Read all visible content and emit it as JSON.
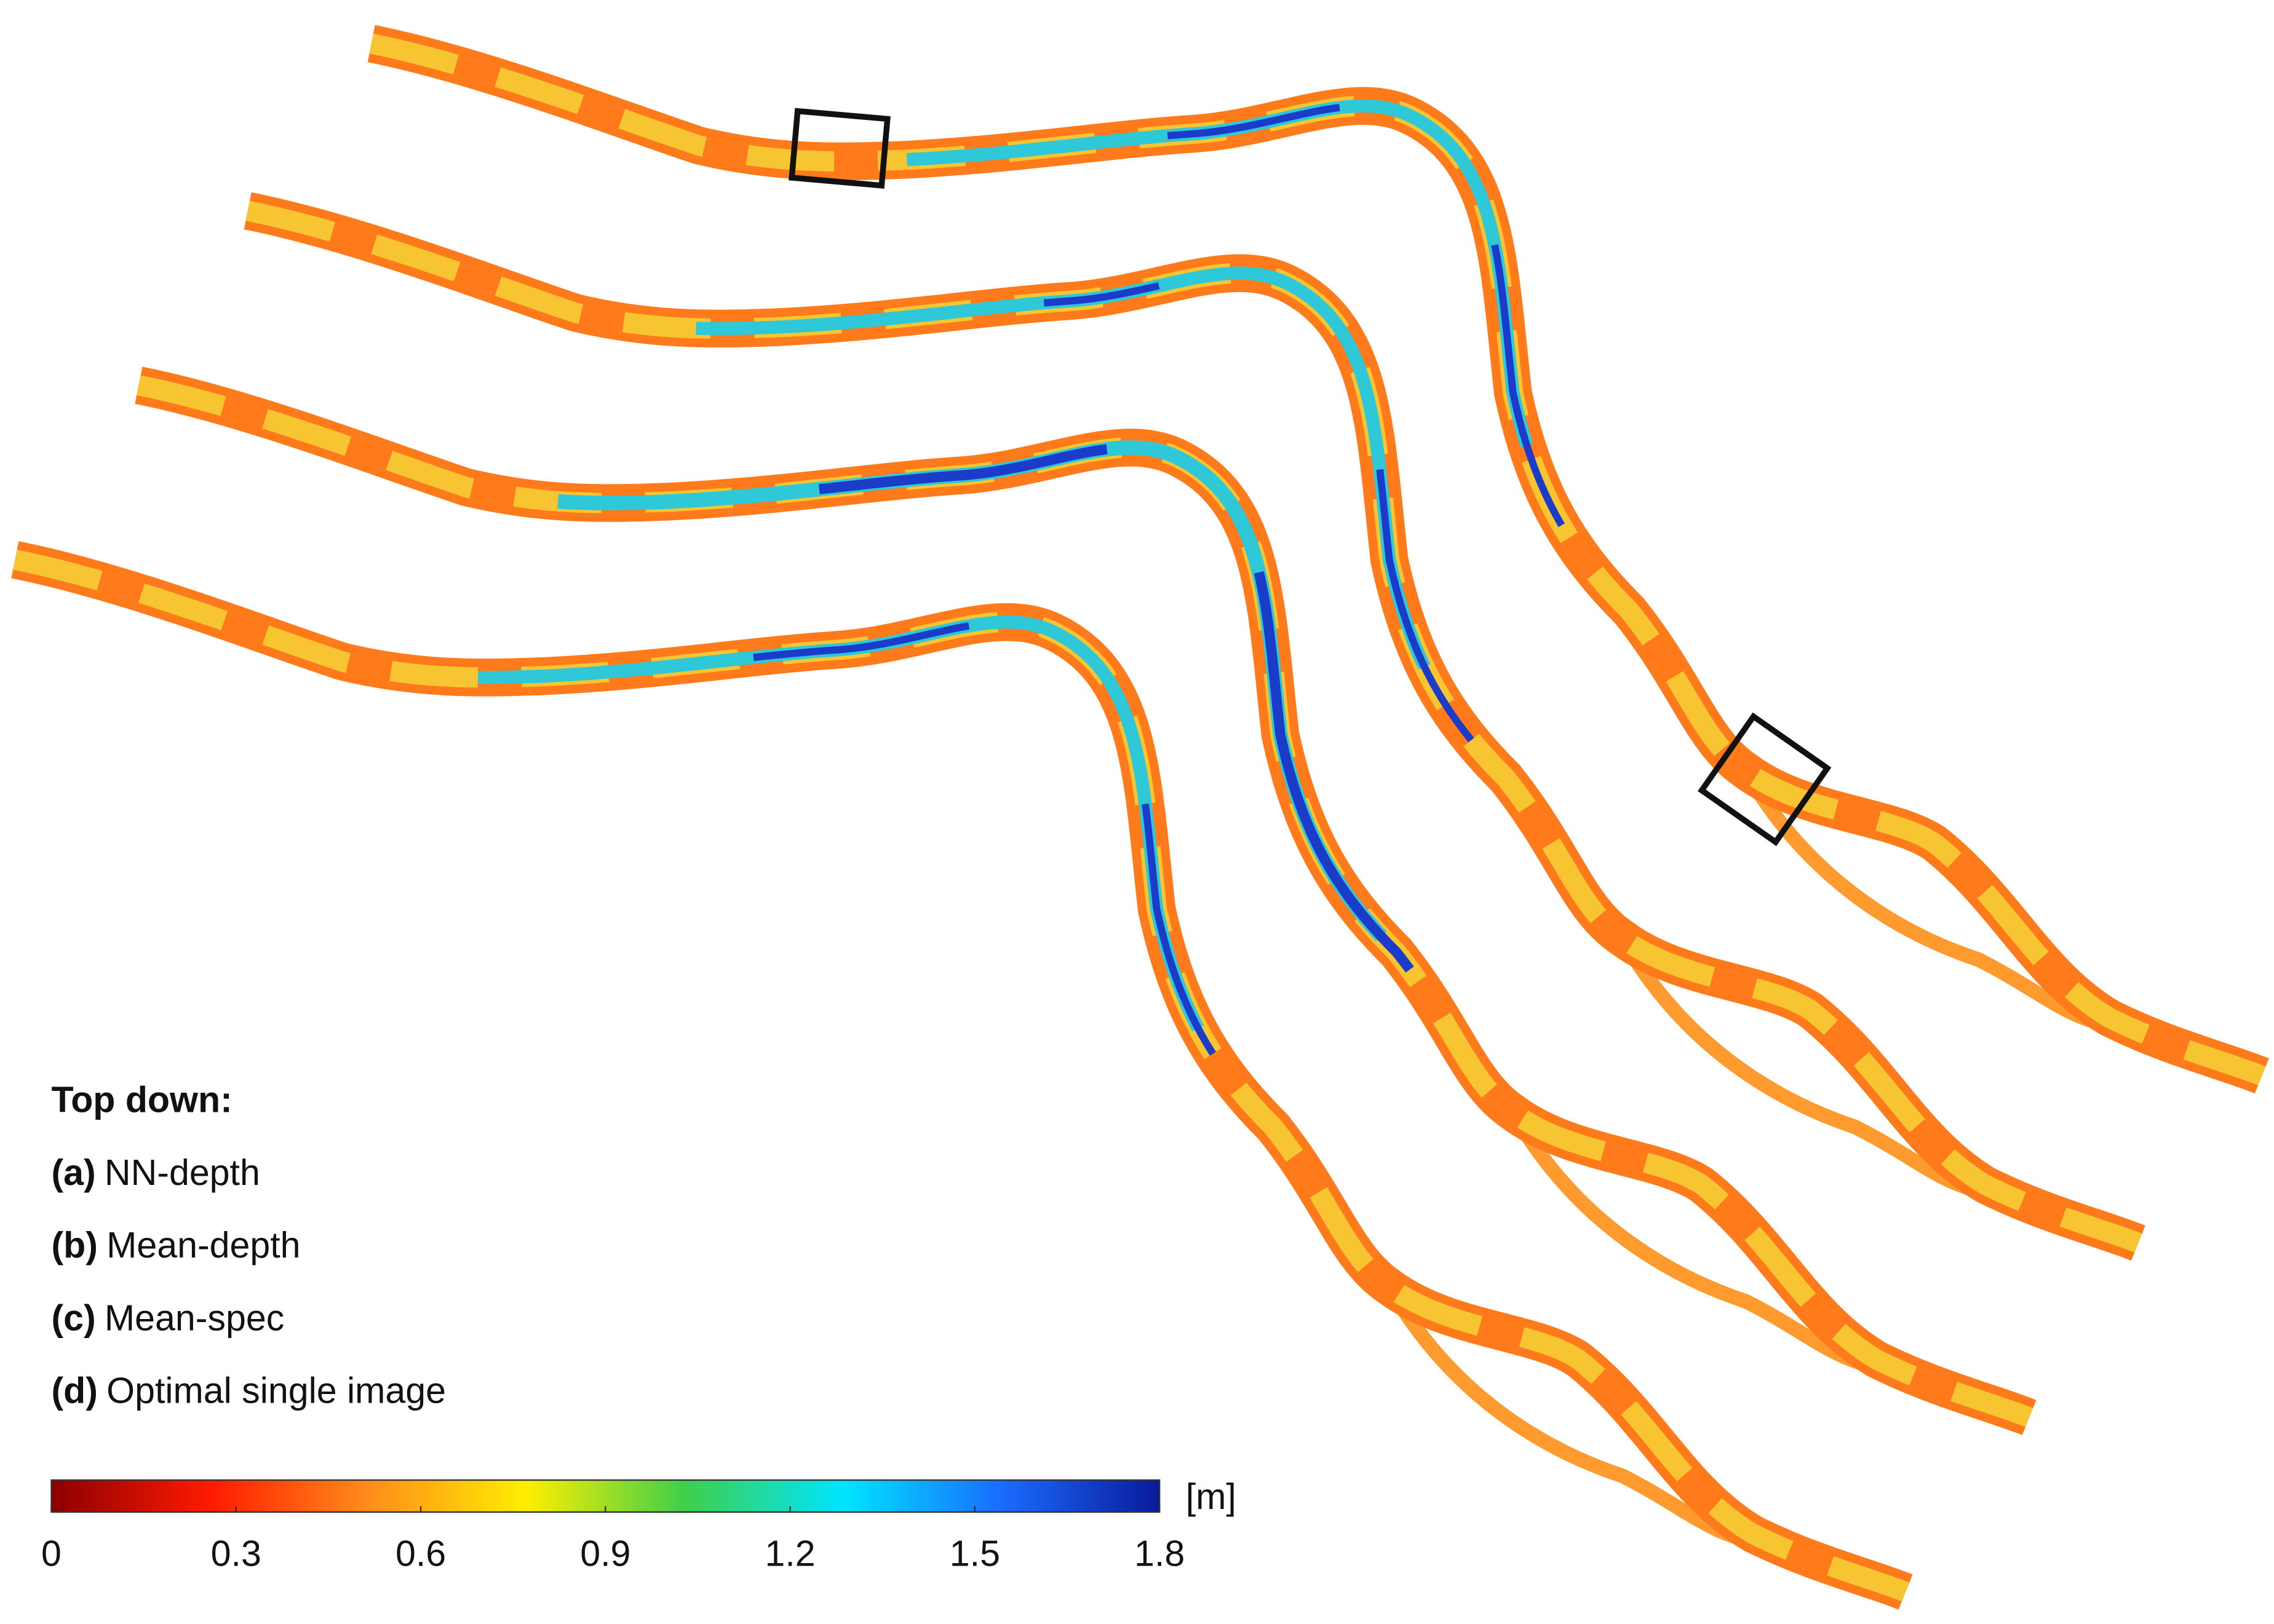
{
  "legend": {
    "title": "Top down:",
    "items": [
      {
        "label": "(a)",
        "text": "NN-depth"
      },
      {
        "label": "(b)",
        "text": "Mean-depth"
      },
      {
        "label": "(c)",
        "text": "Mean-spec"
      },
      {
        "label": "(d)",
        "text": "Optimal single image"
      }
    ]
  },
  "colorbar": {
    "unit": "[m]",
    "range": [
      0,
      1.8
    ],
    "ticks": [
      0,
      0.3,
      0.6,
      0.9,
      1.2,
      1.5,
      1.8
    ],
    "colors": [
      "#8b0000",
      "#ff1a00",
      "#ff8c1a",
      "#ffee00",
      "#3fcf4a",
      "#00e5ff",
      "#1a6cff",
      "#0a1a9a"
    ]
  }
}
